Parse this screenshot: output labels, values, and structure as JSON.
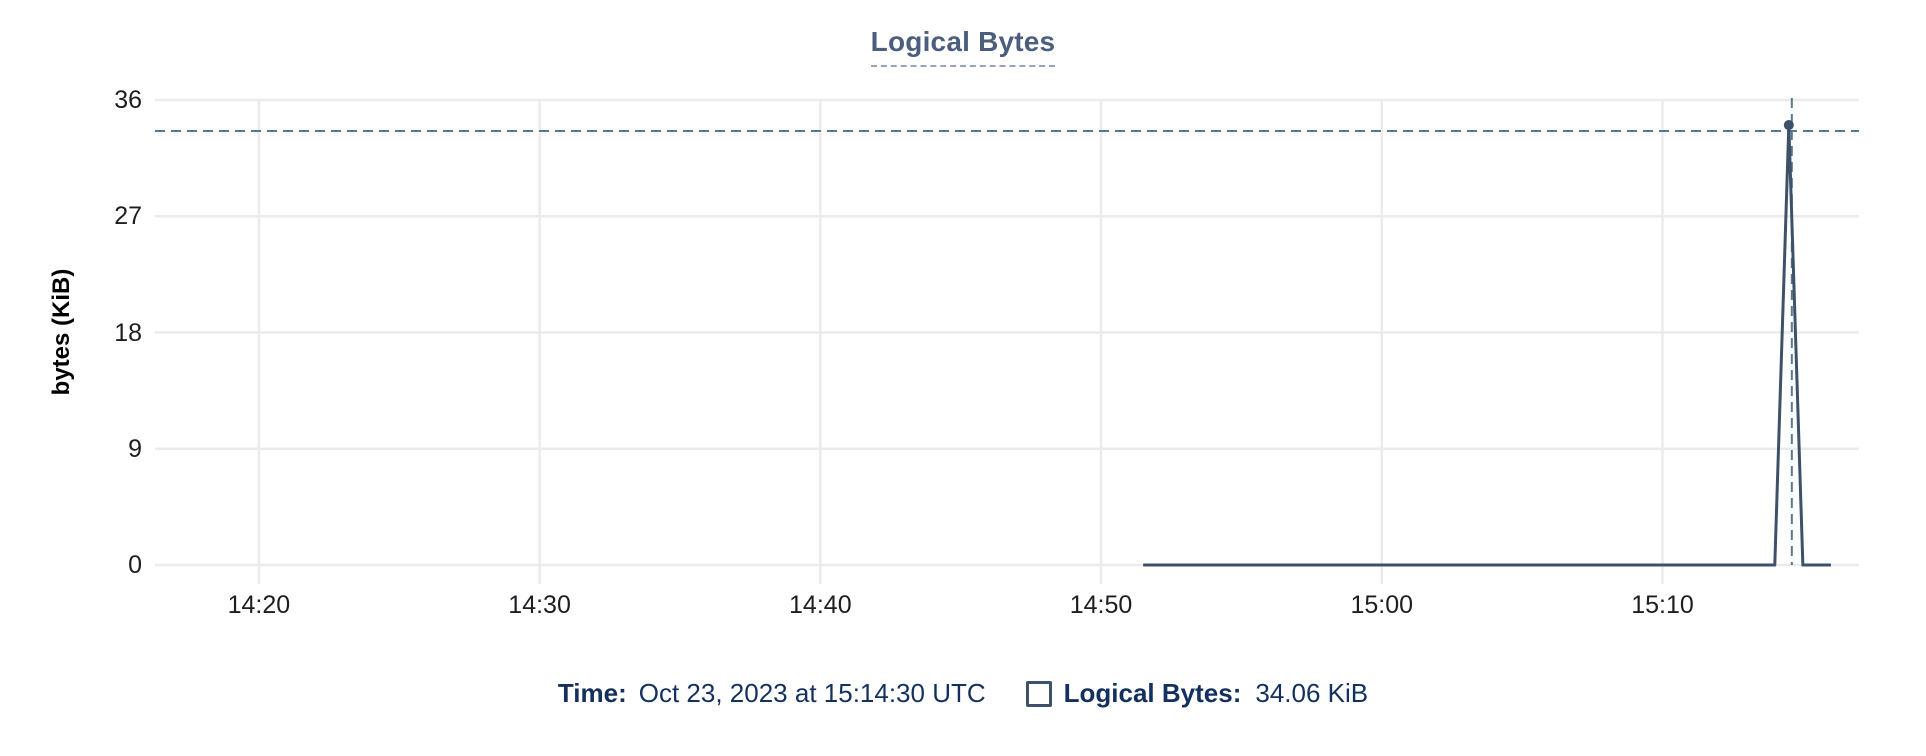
{
  "chart_data": {
    "type": "line",
    "title": "Logical Bytes",
    "xlabel": "",
    "ylabel": "bytes (KiB)",
    "x_unit": "minutes since 00:00 UTC on Oct 23, 2023",
    "xlim": [
      856.3,
      917.0
    ],
    "ylim": [
      0,
      36
    ],
    "grid": true,
    "legend_position": "bottom",
    "yticks": [
      0,
      9,
      18,
      27,
      36
    ],
    "xticks": [
      {
        "m": 860,
        "label": "14:20"
      },
      {
        "m": 870,
        "label": "14:30"
      },
      {
        "m": 880,
        "label": "14:40"
      },
      {
        "m": 890,
        "label": "14:50"
      },
      {
        "m": 900,
        "label": "15:00"
      },
      {
        "m": 910,
        "label": "15:10"
      }
    ],
    "series": [
      {
        "name": "Logical Bytes",
        "points": [
          {
            "m": 891.5,
            "time": "14:51:30",
            "v": 0
          },
          {
            "m": 914.0,
            "time": "15:14:00",
            "v": 0
          },
          {
            "m": 914.5,
            "time": "15:14:30",
            "v": 34.06
          },
          {
            "m": 915.0,
            "time": "15:15:00",
            "v": 0
          },
          {
            "m": 916.0,
            "time": "15:16:00",
            "v": 0
          }
        ]
      }
    ],
    "selected_point": {
      "m": 914.5,
      "time": "15:14:30",
      "v": 34.06
    },
    "colors": {
      "line": "#3d5168",
      "crosshair": "#54788d",
      "grid": "#ebebeb",
      "title": "#4b5e7e",
      "tooltip_text": "#13305f"
    }
  },
  "tooltip": {
    "time_label": "Time:",
    "time_value": "Oct 23, 2023 at 15:14:30 UTC",
    "series_label": "Logical Bytes:",
    "series_value": "34.06 KiB"
  }
}
